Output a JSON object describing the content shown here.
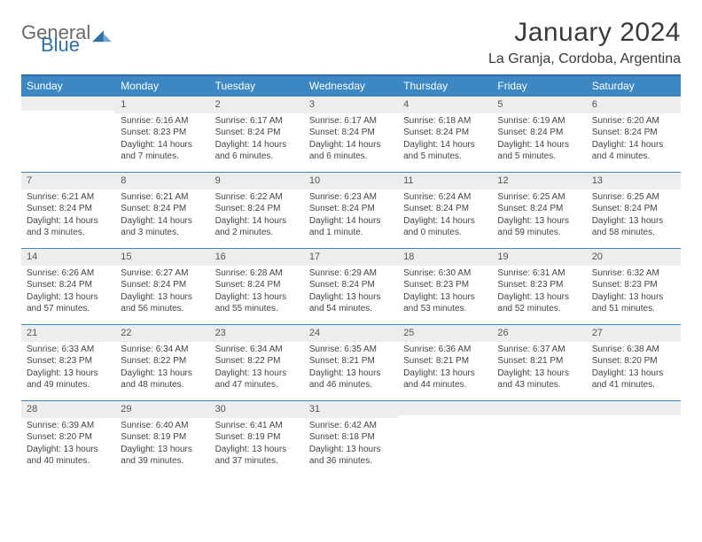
{
  "logo": {
    "word1": "General",
    "word2": "Blue"
  },
  "title": "January 2024",
  "location": "La Granja, Cordoba, Argentina",
  "colors": {
    "header_bg": "#3b88c4",
    "header_border": "#2f6fa8",
    "daynum_bg": "#ededed",
    "text": "#333333"
  },
  "weekdays": [
    "Sunday",
    "Monday",
    "Tuesday",
    "Wednesday",
    "Thursday",
    "Friday",
    "Saturday"
  ],
  "weeks": [
    [
      {
        "n": "",
        "lines": []
      },
      {
        "n": "1",
        "lines": [
          "Sunrise: 6:16 AM",
          "Sunset: 8:23 PM",
          "Daylight: 14 hours",
          "and 7 minutes."
        ]
      },
      {
        "n": "2",
        "lines": [
          "Sunrise: 6:17 AM",
          "Sunset: 8:24 PM",
          "Daylight: 14 hours",
          "and 6 minutes."
        ]
      },
      {
        "n": "3",
        "lines": [
          "Sunrise: 6:17 AM",
          "Sunset: 8:24 PM",
          "Daylight: 14 hours",
          "and 6 minutes."
        ]
      },
      {
        "n": "4",
        "lines": [
          "Sunrise: 6:18 AM",
          "Sunset: 8:24 PM",
          "Daylight: 14 hours",
          "and 5 minutes."
        ]
      },
      {
        "n": "5",
        "lines": [
          "Sunrise: 6:19 AM",
          "Sunset: 8:24 PM",
          "Daylight: 14 hours",
          "and 5 minutes."
        ]
      },
      {
        "n": "6",
        "lines": [
          "Sunrise: 6:20 AM",
          "Sunset: 8:24 PM",
          "Daylight: 14 hours",
          "and 4 minutes."
        ]
      }
    ],
    [
      {
        "n": "7",
        "lines": [
          "Sunrise: 6:21 AM",
          "Sunset: 8:24 PM",
          "Daylight: 14 hours",
          "and 3 minutes."
        ]
      },
      {
        "n": "8",
        "lines": [
          "Sunrise: 6:21 AM",
          "Sunset: 8:24 PM",
          "Daylight: 14 hours",
          "and 3 minutes."
        ]
      },
      {
        "n": "9",
        "lines": [
          "Sunrise: 6:22 AM",
          "Sunset: 8:24 PM",
          "Daylight: 14 hours",
          "and 2 minutes."
        ]
      },
      {
        "n": "10",
        "lines": [
          "Sunrise: 6:23 AM",
          "Sunset: 8:24 PM",
          "Daylight: 14 hours",
          "and 1 minute."
        ]
      },
      {
        "n": "11",
        "lines": [
          "Sunrise: 6:24 AM",
          "Sunset: 8:24 PM",
          "Daylight: 14 hours",
          "and 0 minutes."
        ]
      },
      {
        "n": "12",
        "lines": [
          "Sunrise: 6:25 AM",
          "Sunset: 8:24 PM",
          "Daylight: 13 hours",
          "and 59 minutes."
        ]
      },
      {
        "n": "13",
        "lines": [
          "Sunrise: 6:25 AM",
          "Sunset: 8:24 PM",
          "Daylight: 13 hours",
          "and 58 minutes."
        ]
      }
    ],
    [
      {
        "n": "14",
        "lines": [
          "Sunrise: 6:26 AM",
          "Sunset: 8:24 PM",
          "Daylight: 13 hours",
          "and 57 minutes."
        ]
      },
      {
        "n": "15",
        "lines": [
          "Sunrise: 6:27 AM",
          "Sunset: 8:24 PM",
          "Daylight: 13 hours",
          "and 56 minutes."
        ]
      },
      {
        "n": "16",
        "lines": [
          "Sunrise: 6:28 AM",
          "Sunset: 8:24 PM",
          "Daylight: 13 hours",
          "and 55 minutes."
        ]
      },
      {
        "n": "17",
        "lines": [
          "Sunrise: 6:29 AM",
          "Sunset: 8:24 PM",
          "Daylight: 13 hours",
          "and 54 minutes."
        ]
      },
      {
        "n": "18",
        "lines": [
          "Sunrise: 6:30 AM",
          "Sunset: 8:23 PM",
          "Daylight: 13 hours",
          "and 53 minutes."
        ]
      },
      {
        "n": "19",
        "lines": [
          "Sunrise: 6:31 AM",
          "Sunset: 8:23 PM",
          "Daylight: 13 hours",
          "and 52 minutes."
        ]
      },
      {
        "n": "20",
        "lines": [
          "Sunrise: 6:32 AM",
          "Sunset: 8:23 PM",
          "Daylight: 13 hours",
          "and 51 minutes."
        ]
      }
    ],
    [
      {
        "n": "21",
        "lines": [
          "Sunrise: 6:33 AM",
          "Sunset: 8:23 PM",
          "Daylight: 13 hours",
          "and 49 minutes."
        ]
      },
      {
        "n": "22",
        "lines": [
          "Sunrise: 6:34 AM",
          "Sunset: 8:22 PM",
          "Daylight: 13 hours",
          "and 48 minutes."
        ]
      },
      {
        "n": "23",
        "lines": [
          "Sunrise: 6:34 AM",
          "Sunset: 8:22 PM",
          "Daylight: 13 hours",
          "and 47 minutes."
        ]
      },
      {
        "n": "24",
        "lines": [
          "Sunrise: 6:35 AM",
          "Sunset: 8:21 PM",
          "Daylight: 13 hours",
          "and 46 minutes."
        ]
      },
      {
        "n": "25",
        "lines": [
          "Sunrise: 6:36 AM",
          "Sunset: 8:21 PM",
          "Daylight: 13 hours",
          "and 44 minutes."
        ]
      },
      {
        "n": "26",
        "lines": [
          "Sunrise: 6:37 AM",
          "Sunset: 8:21 PM",
          "Daylight: 13 hours",
          "and 43 minutes."
        ]
      },
      {
        "n": "27",
        "lines": [
          "Sunrise: 6:38 AM",
          "Sunset: 8:20 PM",
          "Daylight: 13 hours",
          "and 41 minutes."
        ]
      }
    ],
    [
      {
        "n": "28",
        "lines": [
          "Sunrise: 6:39 AM",
          "Sunset: 8:20 PM",
          "Daylight: 13 hours",
          "and 40 minutes."
        ]
      },
      {
        "n": "29",
        "lines": [
          "Sunrise: 6:40 AM",
          "Sunset: 8:19 PM",
          "Daylight: 13 hours",
          "and 39 minutes."
        ]
      },
      {
        "n": "30",
        "lines": [
          "Sunrise: 6:41 AM",
          "Sunset: 8:19 PM",
          "Daylight: 13 hours",
          "and 37 minutes."
        ]
      },
      {
        "n": "31",
        "lines": [
          "Sunrise: 6:42 AM",
          "Sunset: 8:18 PM",
          "Daylight: 13 hours",
          "and 36 minutes."
        ]
      },
      {
        "n": "",
        "lines": []
      },
      {
        "n": "",
        "lines": []
      },
      {
        "n": "",
        "lines": []
      }
    ]
  ]
}
